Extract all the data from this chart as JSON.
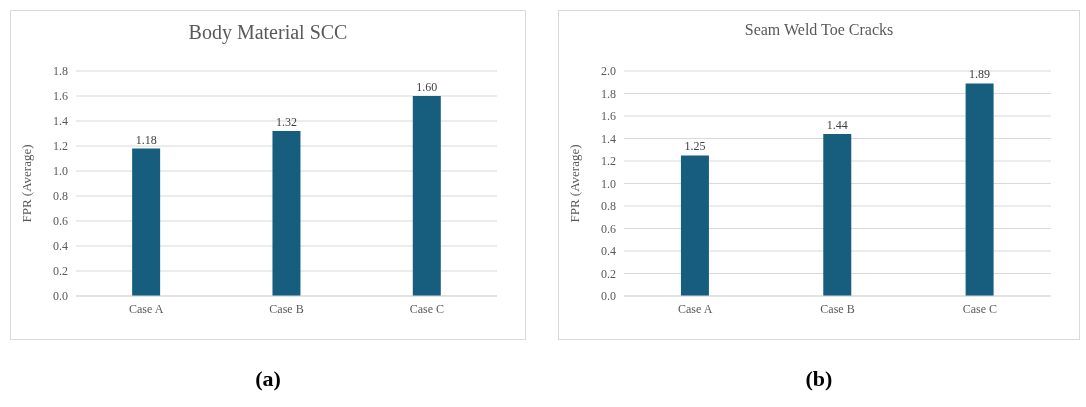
{
  "chart_data": [
    {
      "type": "bar",
      "title": "Body Material SCC",
      "ylabel": "FPR (Average)",
      "categories": [
        "Case A",
        "Case B",
        "Case C"
      ],
      "values": [
        1.18,
        1.32,
        1.6
      ],
      "value_labels": [
        "1.18",
        "1.32",
        "1.60"
      ],
      "color": "#175e7e",
      "ylim": [
        0,
        1.8
      ],
      "yticks": [
        {
          "value": 0,
          "label": "0.0"
        },
        0.2,
        0.4,
        0.6,
        0.8,
        {
          "value": 1,
          "label": "1.0"
        },
        1.2,
        1.4,
        1.6,
        1.8
      ],
      "grid": "y",
      "annotations": [
        "(a)"
      ]
    },
    {
      "type": "bar",
      "title": "Seam Weld Toe Cracks",
      "ylabel": "FPR (Average)",
      "categories": [
        "Case A",
        "Case B",
        "Case C"
      ],
      "values": [
        1.25,
        1.44,
        1.89
      ],
      "value_labels": [
        "1.25",
        "1.44",
        "1.89"
      ],
      "color": "#175e7e",
      "ylim": [
        0,
        2
      ],
      "yticks": [
        {
          "value": 0,
          "label": "0.0"
        },
        0.2,
        0.4,
        0.6,
        0.8,
        {
          "value": 1,
          "label": "1.0"
        },
        1.2,
        1.4,
        1.6,
        1.8,
        {
          "value": 2,
          "label": "2.0"
        }
      ],
      "grid": "y",
      "annotations": [
        "(b)"
      ]
    }
  ]
}
